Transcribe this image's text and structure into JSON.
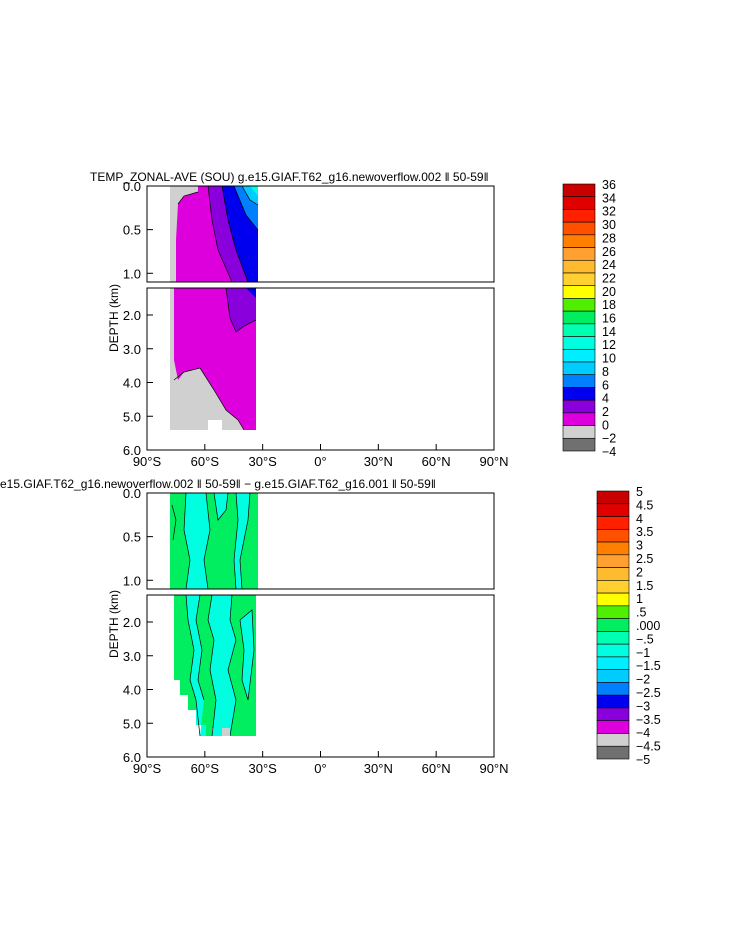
{
  "chart_data": [
    {
      "type": "heatmap",
      "title": "TEMP_ZONAL-AVE (SOU) g.e15.GIAF.T62_g16.newoverflow.002 ‖ 50-59‖",
      "ylabel": "DEPTH (km)",
      "x_ticks": [
        "90°S",
        "60°S",
        "30°S",
        "0°",
        "30°N",
        "60°N",
        "90°N"
      ],
      "y_ticks_upper": [
        "0.0",
        "0.5",
        "1.0"
      ],
      "y_ticks_lower": [
        "2.0",
        "3.0",
        "4.0",
        "5.0",
        "6.0"
      ],
      "xlim": [
        -90,
        90
      ],
      "ylim": [
        6.0,
        0.0
      ],
      "colorbar": {
        "labels": [
          "36",
          "34",
          "32",
          "30",
          "28",
          "26",
          "24",
          "22",
          "20",
          "18",
          "16",
          "14",
          "12",
          "10",
          "8",
          "6",
          "4",
          "2",
          "0",
          "−2",
          "−4"
        ],
        "colors": [
          "#c80000",
          "#e00000",
          "#ff2000",
          "#ff5000",
          "#ff8000",
          "#ffa030",
          "#ffbb30",
          "#ffd030",
          "#ffff00",
          "#50ee00",
          "#00ee60",
          "#00ffb0",
          "#00ffe0",
          "#00eeff",
          "#00ccff",
          "#0080ff",
          "#0000ee",
          "#8a00dd",
          "#dd00dd",
          "#d0d0d0",
          "#707070"
        ]
      }
    },
    {
      "type": "heatmap",
      "title": "e15.GIAF.T62_g16.newoverflow.002 ‖ 50-59‖ − g.e15.GIAF.T62_g16.001 ‖ 50-59‖",
      "ylabel": "DEPTH (km)",
      "x_ticks": [
        "90°S",
        "60°S",
        "30°S",
        "0°",
        "30°N",
        "60°N",
        "90°N"
      ],
      "y_ticks_upper": [
        "0.0",
        "0.5",
        "1.0"
      ],
      "y_ticks_lower": [
        "2.0",
        "3.0",
        "4.0",
        "5.0",
        "6.0"
      ],
      "xlim": [
        -90,
        90
      ],
      "ylim": [
        6.0,
        0.0
      ],
      "colorbar": {
        "labels": [
          "5",
          "4.5",
          "4",
          "3.5",
          "3",
          "2.5",
          "2",
          "1.5",
          "1",
          ".5",
          ".000",
          "−.5",
          "−1",
          "−1.5",
          "−2",
          "−2.5",
          "−3",
          "−3.5",
          "−4",
          "−4.5",
          "−5"
        ],
        "colors": [
          "#c80000",
          "#e00000",
          "#ff2000",
          "#ff5000",
          "#ff8000",
          "#ffa030",
          "#ffbb30",
          "#ffd030",
          "#ffff00",
          "#50ee00",
          "#00ee60",
          "#00ffb0",
          "#00ffe0",
          "#00eeff",
          "#00ccff",
          "#0080ff",
          "#0000ee",
          "#8a00dd",
          "#dd00dd",
          "#d0d0d0",
          "#707070"
        ]
      }
    }
  ]
}
